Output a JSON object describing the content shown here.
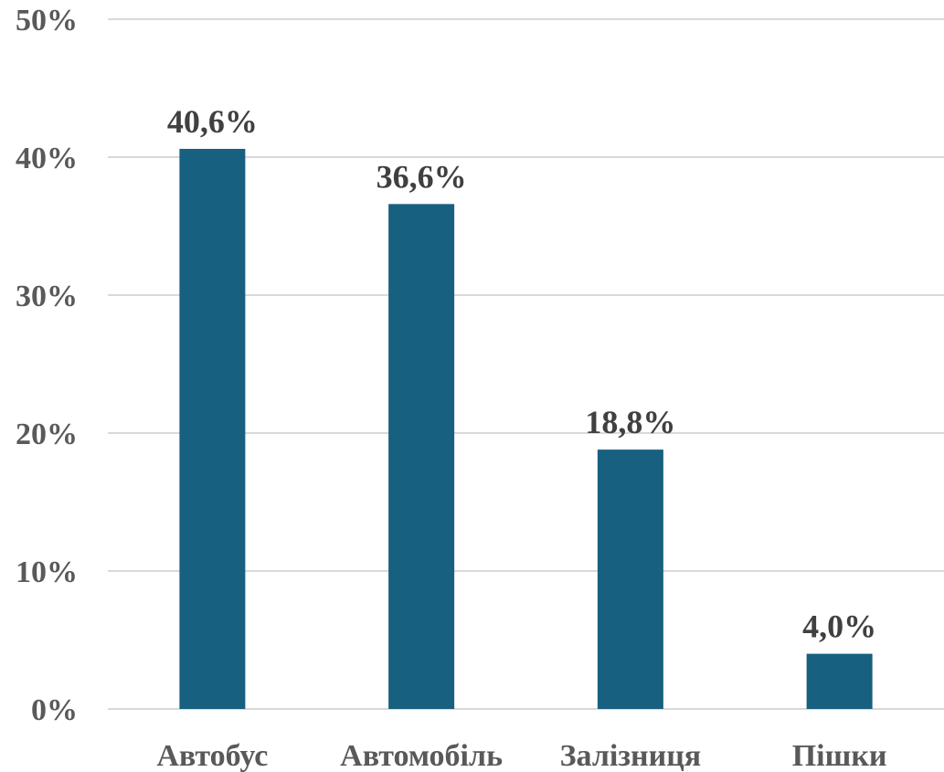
{
  "chart_data": {
    "type": "bar",
    "categories": [
      "Автобус",
      "Автомобіль",
      "Залізниця",
      "Пішки"
    ],
    "values": [
      40.6,
      36.6,
      18.8,
      4.0
    ],
    "data_labels": [
      "40,6%",
      "36,6%",
      "18,8%",
      "4,0%"
    ],
    "y_ticks": [
      0,
      10,
      20,
      30,
      40,
      50
    ],
    "y_tick_labels": [
      "0%",
      "10%",
      "20%",
      "30%",
      "40%",
      "50%"
    ],
    "ylim": [
      0,
      50
    ],
    "title": "",
    "xlabel": "",
    "ylabel": "",
    "grid": true,
    "legend": "none",
    "bar_color": "#17607f",
    "grid_color": "#d9d9d9",
    "label_color": "#404040"
  }
}
